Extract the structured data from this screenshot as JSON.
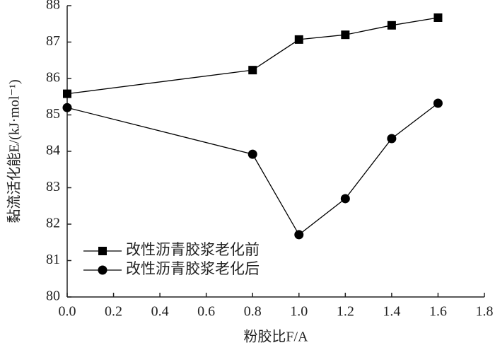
{
  "chart_data": {
    "type": "line",
    "x_label": "粉胶比F/A",
    "y_label": "黏流活化能E/(kJ·mol⁻¹)",
    "xlim": [
      0,
      1.8
    ],
    "xticks": [
      {
        "value": 0,
        "label": "0.0"
      },
      {
        "value": 0.2,
        "label": "0.2"
      },
      {
        "value": 0.4,
        "label": "0.4"
      },
      {
        "value": 0.6,
        "label": "0.6"
      },
      {
        "value": 0.8,
        "label": "0.8"
      },
      {
        "value": 1,
        "label": "1.0"
      },
      {
        "value": 1.2,
        "label": "1.2"
      },
      {
        "value": 1.4,
        "label": "1.4"
      },
      {
        "value": 1.6,
        "label": "1.6"
      },
      {
        "value": 1.8,
        "label": "1.8"
      }
    ],
    "ylim": [
      80,
      88
    ],
    "yticks": [
      80,
      81,
      82,
      83,
      84,
      85,
      86,
      87,
      88
    ],
    "legend": "lower left",
    "series": [
      {
        "name": "改性沥青胶浆老化前",
        "color": "#000000",
        "marker": "square",
        "x": [
          0,
          0.8,
          1,
          1.2,
          1.4,
          1.6
        ],
        "values": [
          85.58,
          86.23,
          87.07,
          87.2,
          87.46,
          87.67
        ]
      },
      {
        "name": "改性沥青胶浆老化后",
        "color": "#000000",
        "marker": "circle",
        "x": [
          0,
          0.8,
          1,
          1.2,
          1.4,
          1.6
        ],
        "values": [
          85.2,
          83.92,
          81.71,
          82.7,
          84.35,
          85.32
        ]
      }
    ]
  }
}
